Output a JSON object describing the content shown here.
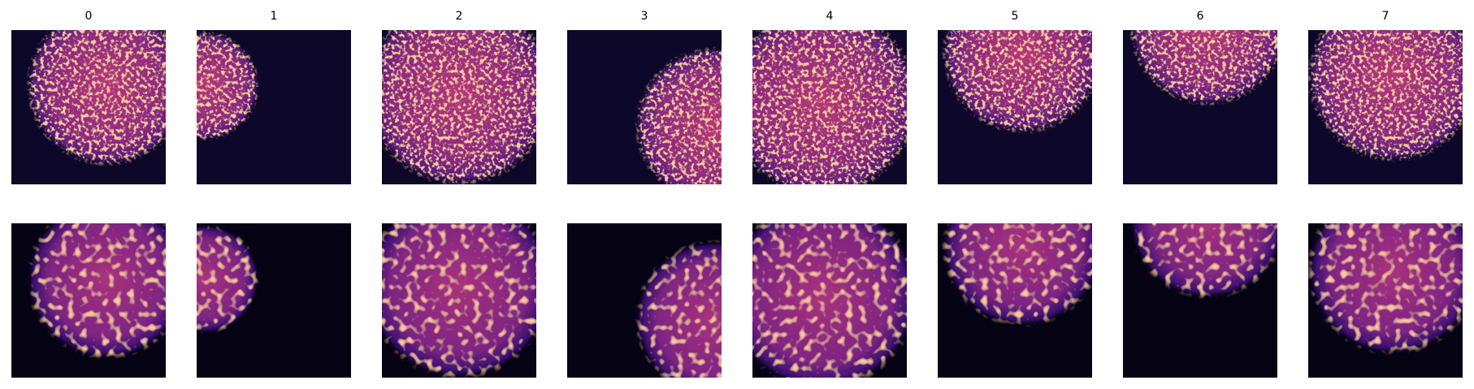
{
  "columns": [
    "0",
    "1",
    "2",
    "3",
    "4",
    "5",
    "6",
    "7"
  ]
}
